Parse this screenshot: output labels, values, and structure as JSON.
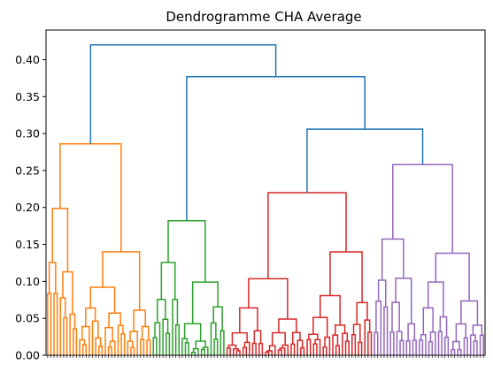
{
  "chart_data": {
    "type": "dendrogram",
    "title": "Dendrogramme CHA Average",
    "xlabel": "",
    "ylabel": "",
    "ylim": [
      0,
      0.44
    ],
    "yticks": [
      0.0,
      0.05,
      0.1,
      0.15,
      0.2,
      0.25,
      0.3,
      0.35,
      0.4
    ],
    "ytick_labels": [
      "0.00",
      "0.05",
      "0.10",
      "0.15",
      "0.20",
      "0.25",
      "0.30",
      "0.35",
      "0.40"
    ],
    "grid": false,
    "legend": "none",
    "leaf_count": 137,
    "link_color_above_threshold": "#1f77b4",
    "top_merges": [
      {
        "height": 0.42,
        "joins": "cluster 1 + (clusters 2, 3, 4)"
      },
      {
        "height": 0.377,
        "joins": "cluster 2 + (clusters 3, 4)"
      },
      {
        "height": 0.306,
        "joins": "cluster 3 + cluster 4"
      }
    ],
    "clusters": [
      {
        "id": 1,
        "color": "#ff7f0e",
        "leaves": 33,
        "merge_height": 0.286
      },
      {
        "id": 2,
        "color": "#2ca02c",
        "leaves": 23,
        "merge_height": 0.182
      },
      {
        "id": 3,
        "color": "#d62728",
        "leaves": 46,
        "merge_height": 0.22
      },
      {
        "id": 4,
        "color": "#9467bd",
        "leaves": 35,
        "merge_height": 0.258
      }
    ]
  }
}
